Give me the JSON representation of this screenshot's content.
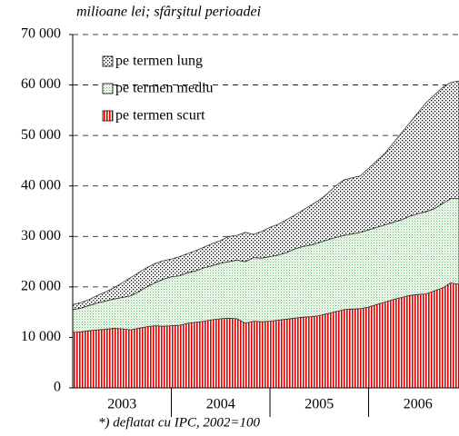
{
  "chart_data": {
    "type": "stacked-area",
    "title": "milioane lei; sfârşitul perioadei",
    "footnote": "*) deflatat cu IPC, 2002=100",
    "categories": [
      null,
      null,
      null,
      null,
      null,
      null,
      "2003",
      null,
      null,
      null,
      null,
      null,
      null,
      null,
      null,
      null,
      null,
      null,
      "2004",
      null,
      null,
      null,
      null,
      null,
      null,
      null,
      null,
      null,
      null,
      null,
      "2005",
      null,
      null,
      null,
      null,
      null,
      null,
      null,
      null,
      null,
      null,
      null,
      "2006",
      null,
      null,
      null,
      null,
      null
    ],
    "series": [
      {
        "name": "pe termen scurt",
        "color": "#e00000",
        "values": [
          11000,
          11100,
          11300,
          11500,
          11600,
          11800,
          11700,
          11500,
          11800,
          12100,
          12300,
          12200,
          12300,
          12400,
          12800,
          13000,
          13200,
          13500,
          13700,
          13800,
          13700,
          12800,
          13200,
          13100,
          13200,
          13400,
          13600,
          13800,
          14000,
          14100,
          14300,
          14700,
          15100,
          15500,
          15600,
          15700,
          16000,
          16500,
          17000,
          17500,
          17900,
          18300,
          18500,
          18600,
          19200,
          19800,
          20800,
          20500
        ]
      },
      {
        "name": "pe termen mediu",
        "color": "#6fbf6f",
        "values": [
          4500,
          4700,
          5000,
          5300,
          5600,
          5800,
          6200,
          6700,
          7200,
          7900,
          8500,
          9300,
          9700,
          9800,
          10000,
          10200,
          10600,
          10700,
          11000,
          11200,
          11600,
          12200,
          12600,
          12600,
          12800,
          12900,
          13200,
          13700,
          14000,
          14200,
          14500,
          14600,
          14700,
          14700,
          14900,
          15100,
          15300,
          15300,
          15300,
          15300,
          15400,
          15700,
          16000,
          16300,
          16300,
          16700,
          16700,
          17000
        ]
      },
      {
        "name": "pe termen lung",
        "color": "#000000",
        "values": [
          1000,
          1100,
          1200,
          1500,
          1800,
          2200,
          2900,
          3600,
          3800,
          3800,
          3800,
          3700,
          3500,
          3800,
          3800,
          4000,
          4100,
          4400,
          4500,
          5000,
          4900,
          5800,
          4600,
          5300,
          5800,
          6100,
          6500,
          6700,
          7200,
          7900,
          8400,
          9200,
          10200,
          11000,
          11100,
          11200,
          12200,
          13200,
          14200,
          15700,
          17200,
          18500,
          20000,
          21600,
          22500,
          23000,
          23000,
          23300
        ]
      }
    ],
    "ylim": [
      0,
      70000
    ],
    "yticks": [
      0,
      {
        "value": 10000,
        "label": "10 000"
      },
      {
        "value": 20000,
        "label": "20 000"
      },
      {
        "value": 30000,
        "label": "30 000"
      },
      {
        "value": 40000,
        "label": "40 000"
      },
      {
        "value": 50000,
        "label": "50 000"
      },
      {
        "value": 60000,
        "label": "60 000"
      },
      {
        "value": 70000,
        "label": "70 000"
      }
    ],
    "grid": true
  }
}
